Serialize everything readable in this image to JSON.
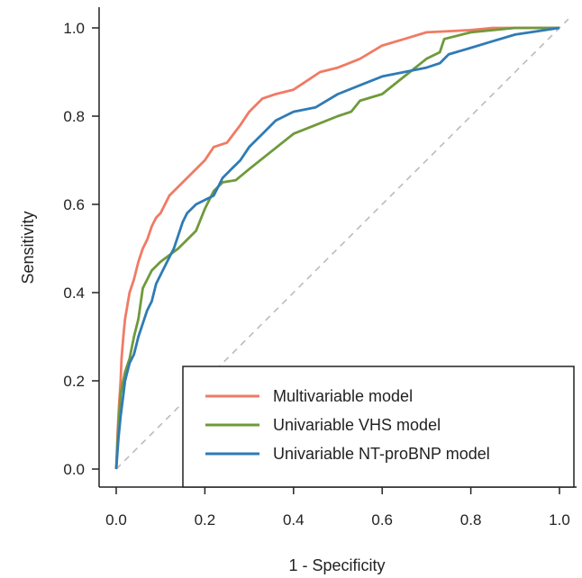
{
  "chart_data": {
    "type": "line",
    "xlabel": "1 - Specificity",
    "ylabel": "Sensitivity",
    "xlim": [
      0,
      1
    ],
    "ylim": [
      0,
      1
    ],
    "x_ticks": [
      "0.0",
      "0.2",
      "0.4",
      "0.6",
      "0.8",
      "1.0"
    ],
    "y_ticks": [
      "0.0",
      "0.2",
      "0.4",
      "0.6",
      "0.8",
      "1.0"
    ],
    "grid": false,
    "legend_position": "bottom-right",
    "reference_line": {
      "style": "dashed",
      "color": "#bbbbbb",
      "points": [
        [
          0,
          0
        ],
        [
          1,
          1
        ]
      ]
    },
    "series": [
      {
        "name": "Multivariable model",
        "color": "#f07b63",
        "points": [
          [
            0,
            0
          ],
          [
            0.003,
            0.08
          ],
          [
            0.006,
            0.14
          ],
          [
            0.01,
            0.2
          ],
          [
            0.012,
            0.25
          ],
          [
            0.016,
            0.3
          ],
          [
            0.02,
            0.34
          ],
          [
            0.025,
            0.37
          ],
          [
            0.03,
            0.4
          ],
          [
            0.04,
            0.43
          ],
          [
            0.05,
            0.47
          ],
          [
            0.06,
            0.5
          ],
          [
            0.07,
            0.52
          ],
          [
            0.08,
            0.55
          ],
          [
            0.09,
            0.57
          ],
          [
            0.1,
            0.58
          ],
          [
            0.11,
            0.6
          ],
          [
            0.12,
            0.62
          ],
          [
            0.14,
            0.64
          ],
          [
            0.16,
            0.66
          ],
          [
            0.18,
            0.68
          ],
          [
            0.2,
            0.7
          ],
          [
            0.22,
            0.73
          ],
          [
            0.25,
            0.74
          ],
          [
            0.28,
            0.78
          ],
          [
            0.3,
            0.81
          ],
          [
            0.33,
            0.84
          ],
          [
            0.36,
            0.85
          ],
          [
            0.4,
            0.86
          ],
          [
            0.43,
            0.88
          ],
          [
            0.46,
            0.9
          ],
          [
            0.5,
            0.91
          ],
          [
            0.55,
            0.93
          ],
          [
            0.6,
            0.96
          ],
          [
            0.65,
            0.975
          ],
          [
            0.7,
            0.99
          ],
          [
            0.8,
            0.995
          ],
          [
            0.85,
            1.0
          ],
          [
            1,
            1
          ]
        ]
      },
      {
        "name": "Univariable VHS model",
        "color": "#6f9a3b",
        "points": [
          [
            0,
            0
          ],
          [
            0.005,
            0.1
          ],
          [
            0.01,
            0.17
          ],
          [
            0.02,
            0.22
          ],
          [
            0.03,
            0.25
          ],
          [
            0.04,
            0.3
          ],
          [
            0.05,
            0.34
          ],
          [
            0.06,
            0.41
          ],
          [
            0.08,
            0.45
          ],
          [
            0.1,
            0.47
          ],
          [
            0.14,
            0.5
          ],
          [
            0.18,
            0.54
          ],
          [
            0.2,
            0.59
          ],
          [
            0.22,
            0.63
          ],
          [
            0.24,
            0.65
          ],
          [
            0.27,
            0.655
          ],
          [
            0.3,
            0.68
          ],
          [
            0.35,
            0.72
          ],
          [
            0.4,
            0.76
          ],
          [
            0.45,
            0.78
          ],
          [
            0.5,
            0.8
          ],
          [
            0.53,
            0.81
          ],
          [
            0.55,
            0.835
          ],
          [
            0.6,
            0.85
          ],
          [
            0.65,
            0.89
          ],
          [
            0.7,
            0.93
          ],
          [
            0.73,
            0.945
          ],
          [
            0.74,
            0.975
          ],
          [
            0.8,
            0.99
          ],
          [
            0.9,
            1.0
          ],
          [
            1,
            1
          ]
        ]
      },
      {
        "name": "Univariable NT-proBNP model",
        "color": "#2f7bb5",
        "points": [
          [
            0,
            0
          ],
          [
            0.005,
            0.07
          ],
          [
            0.01,
            0.12
          ],
          [
            0.015,
            0.16
          ],
          [
            0.02,
            0.2
          ],
          [
            0.03,
            0.24
          ],
          [
            0.04,
            0.26
          ],
          [
            0.05,
            0.3
          ],
          [
            0.06,
            0.33
          ],
          [
            0.07,
            0.36
          ],
          [
            0.08,
            0.38
          ],
          [
            0.09,
            0.42
          ],
          [
            0.1,
            0.44
          ],
          [
            0.12,
            0.48
          ],
          [
            0.13,
            0.5
          ],
          [
            0.14,
            0.53
          ],
          [
            0.15,
            0.56
          ],
          [
            0.16,
            0.58
          ],
          [
            0.18,
            0.6
          ],
          [
            0.2,
            0.61
          ],
          [
            0.22,
            0.62
          ],
          [
            0.24,
            0.66
          ],
          [
            0.26,
            0.68
          ],
          [
            0.28,
            0.7
          ],
          [
            0.3,
            0.73
          ],
          [
            0.33,
            0.76
          ],
          [
            0.36,
            0.79
          ],
          [
            0.4,
            0.81
          ],
          [
            0.45,
            0.82
          ],
          [
            0.5,
            0.85
          ],
          [
            0.55,
            0.87
          ],
          [
            0.6,
            0.89
          ],
          [
            0.65,
            0.9
          ],
          [
            0.7,
            0.91
          ],
          [
            0.73,
            0.92
          ],
          [
            0.75,
            0.94
          ],
          [
            0.8,
            0.955
          ],
          [
            0.85,
            0.97
          ],
          [
            0.9,
            0.985
          ],
          [
            1,
            1
          ]
        ]
      }
    ]
  }
}
